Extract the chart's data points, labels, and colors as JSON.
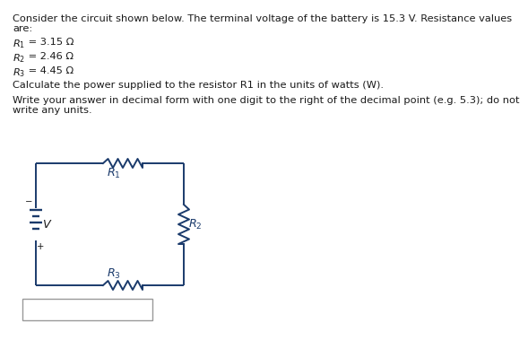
{
  "bg_color": "#ffffff",
  "text_color": "#1a1a1a",
  "circuit_color": "#1a3a6b",
  "line1": "Consider the circuit shown below. The terminal voltage of the battery is 15.3 V. Resistance values",
  "line2": "are:",
  "r1_label": "R",
  "r1_sub": "1",
  "r1_val": " = 3.15 Ω",
  "r2_label": "R",
  "r2_sub": "2",
  "r2_val": " = 2.46 Ω",
  "r3_label": "R",
  "r3_sub": "3",
  "r3_val": " = 4.45 Ω",
  "calc_text": "Calculate the power supplied to the resistor R1 in the units of watts (W).",
  "write_line1": "Write your answer in decimal form with one digit to the right of the decimal point (e.g. 5.3); do not",
  "write_line2": "write any units.",
  "font_size": 8.2,
  "circuit_lw": 1.4
}
